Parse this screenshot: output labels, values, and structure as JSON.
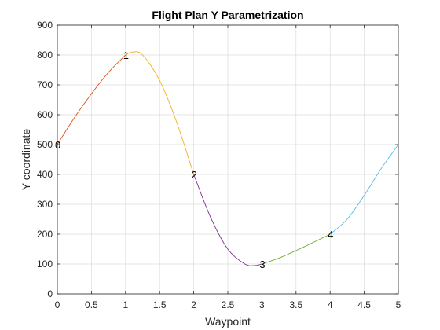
{
  "chart_data": {
    "type": "line",
    "title": "Flight Plan Y Parametrization",
    "xlabel": "Waypoint",
    "ylabel": "Y coordinate",
    "xlim": [
      0,
      5
    ],
    "ylim": [
      0,
      900
    ],
    "xticks": [
      "0",
      "0.5",
      "1",
      "1.5",
      "2",
      "2.5",
      "3",
      "3.5",
      "4",
      "4.5",
      "5"
    ],
    "yticks": [
      "0",
      "100",
      "200",
      "300",
      "400",
      "500",
      "600",
      "700",
      "800",
      "900"
    ],
    "grid": true,
    "waypoints": [
      {
        "label": "0",
        "x": 0,
        "y": 500
      },
      {
        "label": "1",
        "x": 1,
        "y": 800
      },
      {
        "label": "2",
        "x": 2,
        "y": 400
      },
      {
        "label": "3",
        "x": 3,
        "y": 100
      },
      {
        "label": "4",
        "x": 4,
        "y": 200
      }
    ],
    "series": [
      {
        "color": "#d95319",
        "x": [
          0,
          0.25,
          0.5,
          0.75,
          1.0
        ],
        "y": [
          500,
          590,
          670,
          742,
          800
        ]
      },
      {
        "color": "#edb120",
        "x": [
          1.0,
          1.1,
          1.25,
          1.5,
          1.75,
          2.0
        ],
        "y": [
          800,
          810,
          800,
          715,
          575,
          400
        ]
      },
      {
        "color": "#7e2f8e",
        "x": [
          2.0,
          2.25,
          2.5,
          2.75,
          2.9,
          3.0
        ],
        "y": [
          400,
          255,
          150,
          100,
          95,
          100
        ]
      },
      {
        "color": "#77ac30",
        "x": [
          3.0,
          3.25,
          3.5,
          3.75,
          4.0
        ],
        "y": [
          100,
          120,
          145,
          172,
          200
        ]
      },
      {
        "color": "#4dbeee",
        "x": [
          4.0,
          4.25,
          4.5,
          4.75,
          5.0
        ],
        "y": [
          200,
          250,
          330,
          420,
          500
        ]
      }
    ]
  }
}
